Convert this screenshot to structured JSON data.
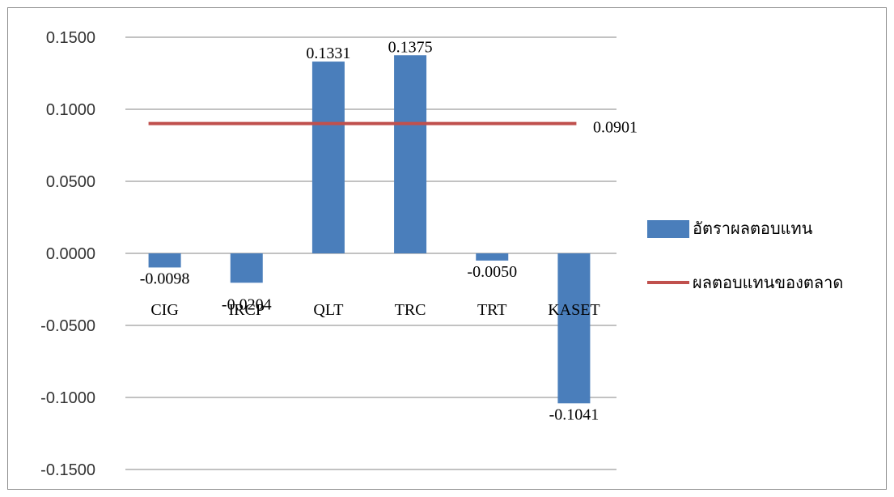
{
  "chart_data": {
    "type": "bar",
    "categories": [
      "CIG",
      "IRCP",
      "QLT",
      "TRC",
      "TRT",
      "KASET"
    ],
    "series": [
      {
        "name": "อัตราผลตอบแทน",
        "values": [
          -0.0098,
          -0.0204,
          0.1331,
          0.1375,
          -0.005,
          -0.1041
        ],
        "color": "#4a7ebb",
        "data_labels": [
          "-0.0098",
          "-0.0204",
          "0.1331",
          "0.1375",
          "-0.0050",
          "-0.1041"
        ]
      },
      {
        "name": "ผลตอบแทนของตลาด",
        "type": "line",
        "value": 0.0901,
        "color": "#c0504d",
        "data_label": "0.0901"
      }
    ],
    "y_ticks": [
      "0.1500",
      "0.1000",
      "0.0500",
      "0.0000",
      "-0.0500",
      "-0.1000",
      "-0.1500"
    ],
    "y_tick_values": [
      0.15,
      0.1,
      0.05,
      0.0,
      -0.05,
      -0.1,
      -0.15
    ],
    "ylim": [
      -0.15,
      0.15
    ],
    "grid": true,
    "legend_position": "right"
  }
}
